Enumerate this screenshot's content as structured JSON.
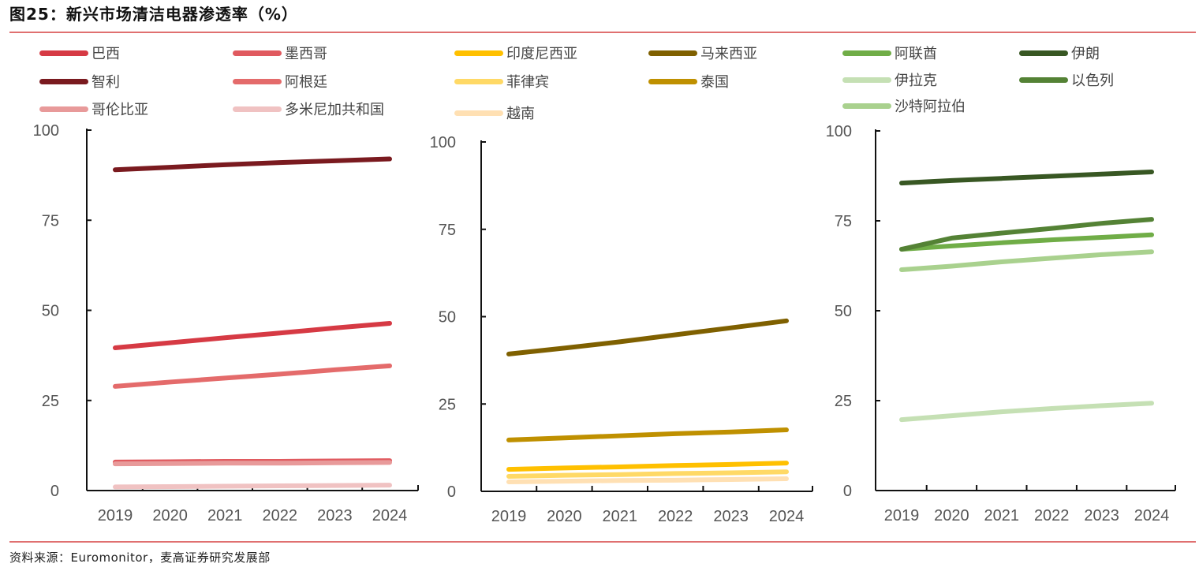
{
  "title": "图25：新兴市场清洁电器渗透率（%）",
  "source": "资料来源：Euromonitor，麦高证券研究发展部",
  "chart_data": [
    {
      "type": "line",
      "categories": [
        "2019",
        "2020",
        "2021",
        "2022",
        "2023",
        "2024"
      ],
      "ylim": [
        0,
        100
      ],
      "yticks": [
        0,
        25,
        50,
        75,
        100
      ],
      "legend_position": "top",
      "grid": false,
      "series": [
        {
          "name": "巴西",
          "color": "#d63a44",
          "values": [
            39.6,
            41.0,
            42.4,
            43.7,
            45.1,
            46.4
          ]
        },
        {
          "name": "墨西哥",
          "color": "#e05a5f",
          "values": [
            7.9,
            8.0,
            8.1,
            8.1,
            8.2,
            8.3
          ]
        },
        {
          "name": "智利",
          "color": "#7a1a1f",
          "values": [
            89.0,
            89.7,
            90.4,
            91.0,
            91.5,
            92.0
          ]
        },
        {
          "name": "阿根廷",
          "color": "#e46b6b",
          "values": [
            28.9,
            30.1,
            31.2,
            32.3,
            33.5,
            34.6
          ]
        },
        {
          "name": "哥伦比亚",
          "color": "#e89a9a",
          "values": [
            7.4,
            7.5,
            7.6,
            7.6,
            7.7,
            7.8
          ]
        },
        {
          "name": "多米尼加共和国",
          "color": "#f0c2c2",
          "values": [
            1.0,
            1.1,
            1.2,
            1.3,
            1.4,
            1.5
          ]
        }
      ]
    },
    {
      "type": "line",
      "categories": [
        "2019",
        "2020",
        "2021",
        "2022",
        "2023",
        "2024"
      ],
      "ylim": [
        0,
        100
      ],
      "yticks": [
        0,
        25,
        50,
        75,
        100
      ],
      "legend_position": "top",
      "grid": false,
      "series": [
        {
          "name": "印度尼西亚",
          "color": "#ffc000",
          "values": [
            6.3,
            6.7,
            7.0,
            7.4,
            7.7,
            8.1
          ]
        },
        {
          "name": "马来西亚",
          "color": "#7f6000",
          "values": [
            39.3,
            41.0,
            42.8,
            44.8,
            46.8,
            48.8
          ]
        },
        {
          "name": "菲律宾",
          "color": "#ffd966",
          "values": [
            4.3,
            4.6,
            4.8,
            5.1,
            5.3,
            5.6
          ]
        },
        {
          "name": "泰国",
          "color": "#bf9000",
          "values": [
            14.7,
            15.3,
            15.9,
            16.5,
            17.0,
            17.6
          ]
        },
        {
          "name": "越南",
          "color": "#ffe0b3",
          "values": [
            2.7,
            2.9,
            3.1,
            3.2,
            3.4,
            3.6
          ]
        }
      ]
    },
    {
      "type": "line",
      "categories": [
        "2019",
        "2020",
        "2021",
        "2022",
        "2023",
        "2024"
      ],
      "ylim": [
        0,
        100
      ],
      "yticks": [
        0,
        25,
        50,
        75,
        100
      ],
      "legend_position": "top",
      "grid": false,
      "series": [
        {
          "name": "阿联酋",
          "color": "#70ad47",
          "values": [
            67.1,
            68.0,
            68.9,
            69.7,
            70.4,
            71.1
          ]
        },
        {
          "name": "伊朗",
          "color": "#385723",
          "values": [
            85.5,
            86.2,
            86.8,
            87.4,
            88.0,
            88.6
          ]
        },
        {
          "name": "伊拉克",
          "color": "#c5e0b4",
          "values": [
            19.7,
            20.8,
            21.9,
            22.8,
            23.6,
            24.3
          ]
        },
        {
          "name": "以色列",
          "color": "#548235",
          "values": [
            67.1,
            70.2,
            71.6,
            72.9,
            74.3,
            75.4
          ]
        },
        {
          "name": "沙特阿拉伯",
          "color": "#a9d18e",
          "values": [
            61.4,
            62.4,
            63.6,
            64.6,
            65.6,
            66.4
          ]
        }
      ]
    }
  ]
}
